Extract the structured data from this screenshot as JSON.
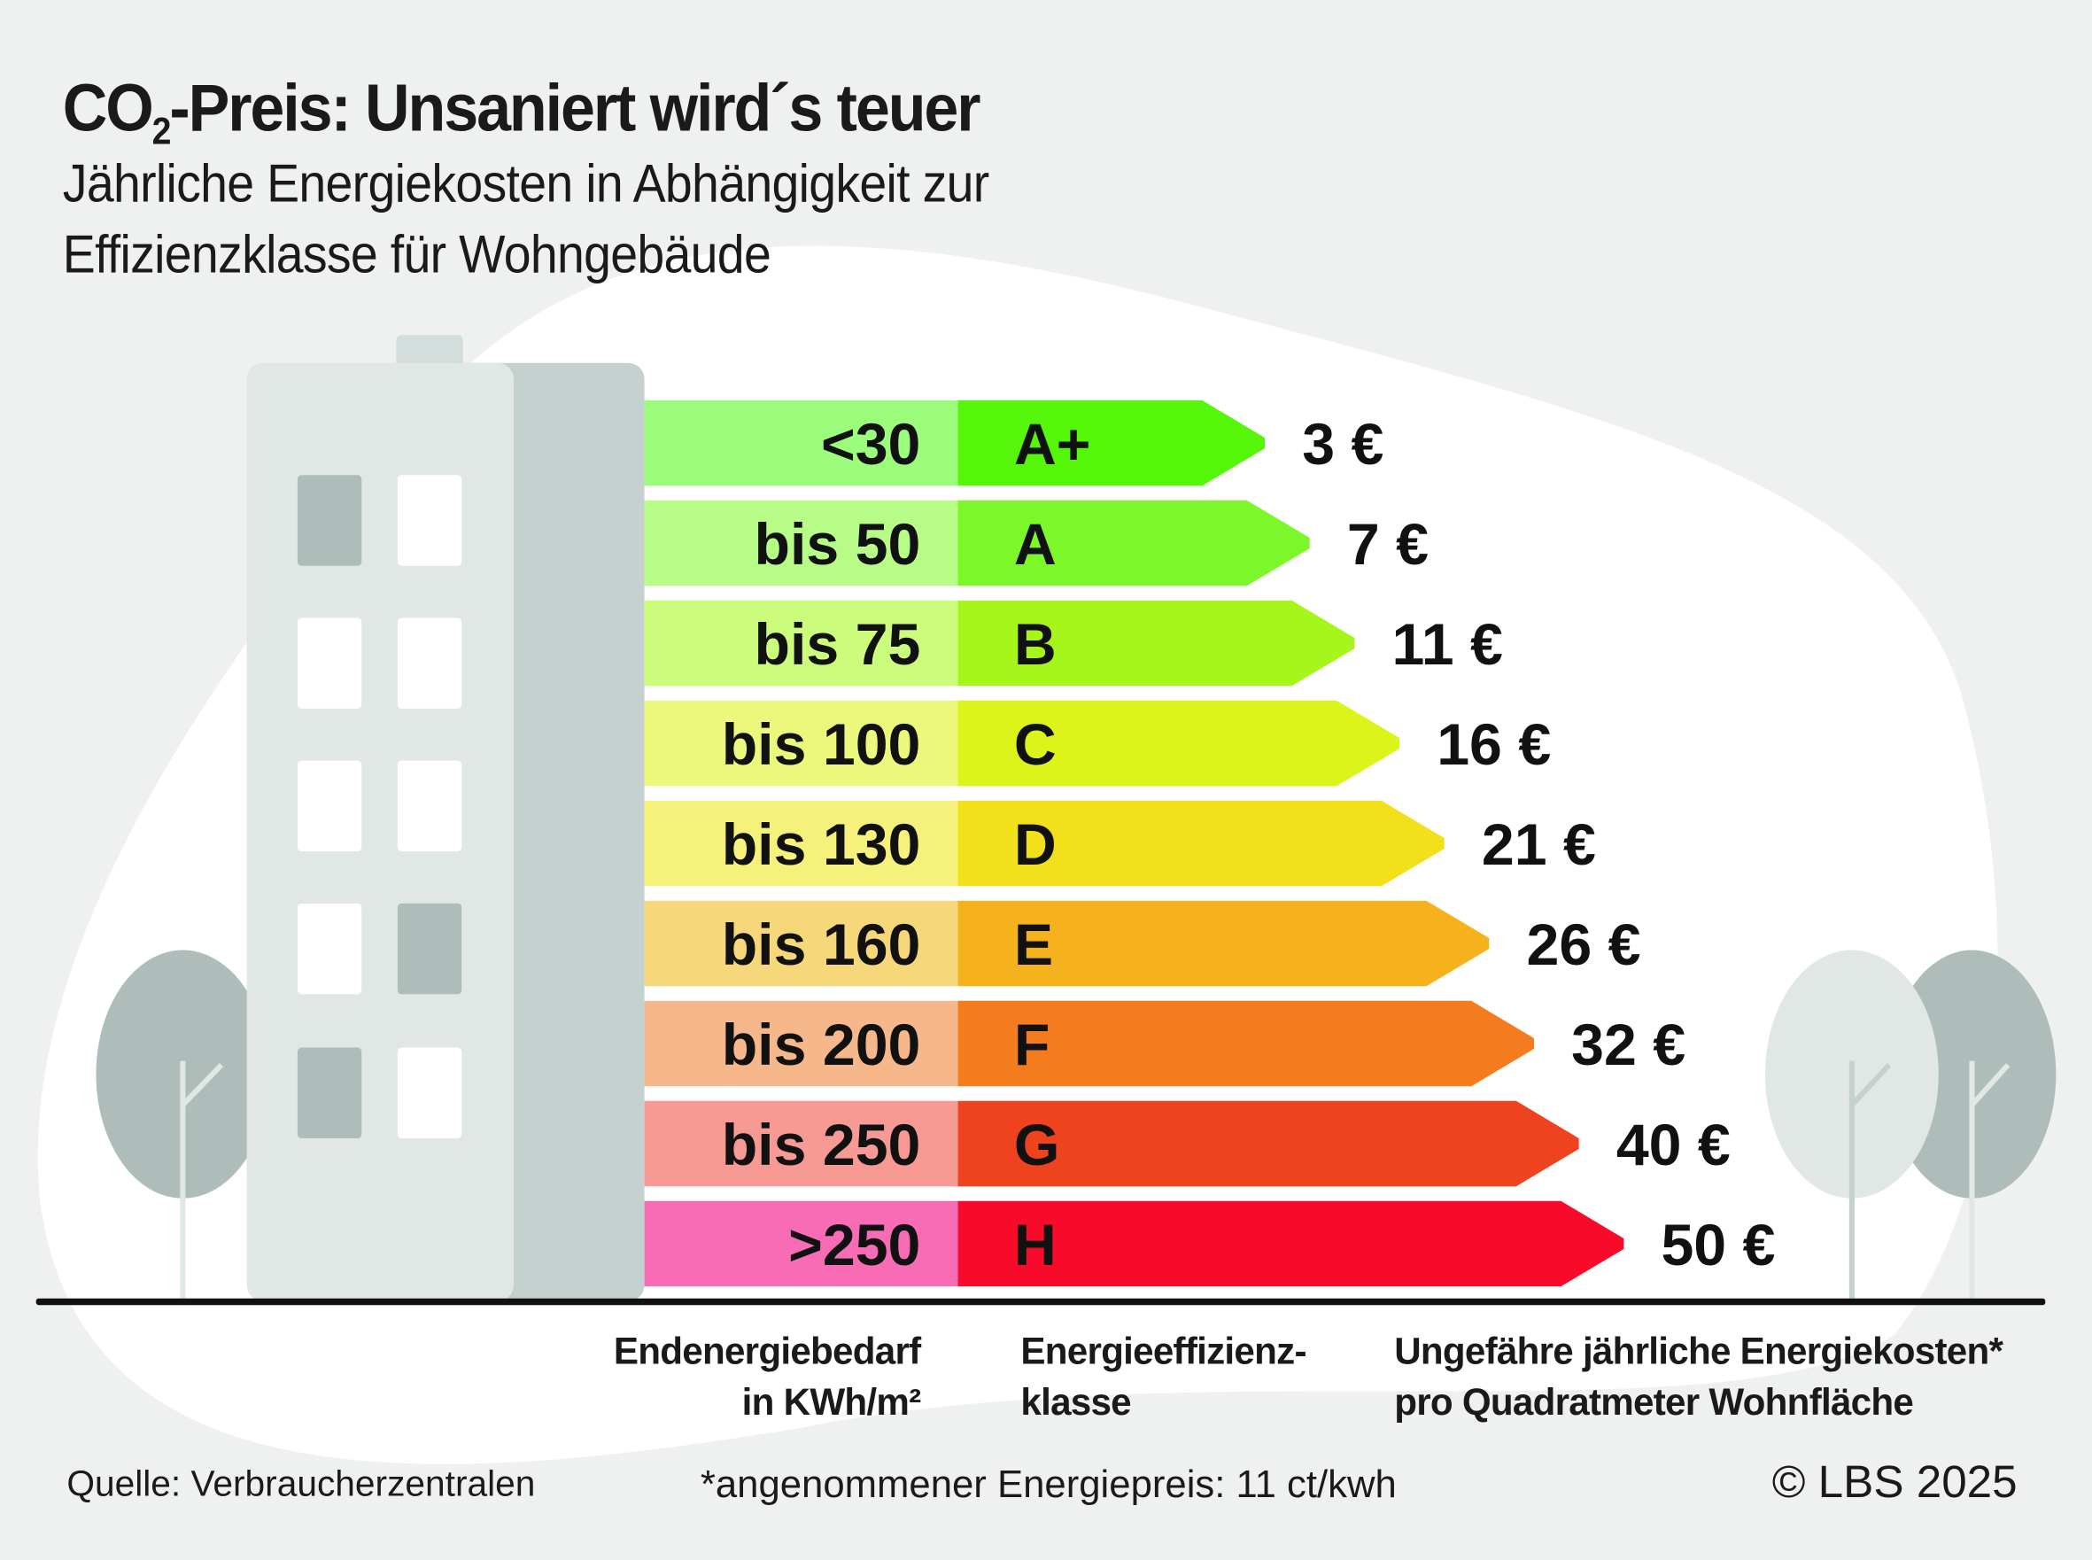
{
  "title": {
    "prefix": "CO",
    "subscript": "2",
    "rest": "-Preis: Unsaniert wird´s teuer"
  },
  "subtitle": [
    "Jährliche Energiekosten in Abhängigkeit zur",
    "Effizienzklasse für Wohngebäude"
  ],
  "chart_data": {
    "type": "bar",
    "categories": [
      "A+",
      "A",
      "B",
      "C",
      "D",
      "E",
      "F",
      "G",
      "H"
    ],
    "demand_ranges": [
      "<30",
      "bis 50",
      "bis 75",
      "bis 100",
      "bis 130",
      "bis 160",
      "bis 200",
      "bis 250",
      ">250"
    ],
    "values": [
      3,
      7,
      11,
      16,
      21,
      26,
      32,
      40,
      50
    ],
    "value_labels": [
      "3 €",
      "7 €",
      "11 €",
      "16 €",
      "21 €",
      "26 €",
      "32 €",
      "40 €",
      "50 €"
    ],
    "range_colors": [
      "#9cfc7c",
      "#b7fc86",
      "#ccfc7c",
      "#ecf87c",
      "#f6f17a",
      "#f6d87a",
      "#f6b88a",
      "#f79a94",
      "#f76cb4"
    ],
    "class_colors": [
      "#55f60a",
      "#7cf82a",
      "#a6f61c",
      "#dcf41a",
      "#f2e11a",
      "#f6b21c",
      "#f57c1e",
      "#ef421e",
      "#f70a2a"
    ]
  },
  "labels": {
    "demand": [
      "Endenergiebedarf",
      "in KWh/m²"
    ],
    "class": [
      "Energieeffizienz-",
      "klasse"
    ],
    "cost": [
      "Ungefähre jährliche Energiekosten*",
      "pro Quadratmeter Wohnfläche"
    ]
  },
  "footer": {
    "source": "Quelle: Verbraucherzentralen",
    "note": "*angenommener Energiepreis: 11 ct/kwh",
    "copyright": "© LBS 2025"
  },
  "colors": {
    "background": "#eff1f0",
    "building_light": "#e0e7e4",
    "building_dark": "#c5d1cf",
    "window_dark": "#afbdba"
  }
}
